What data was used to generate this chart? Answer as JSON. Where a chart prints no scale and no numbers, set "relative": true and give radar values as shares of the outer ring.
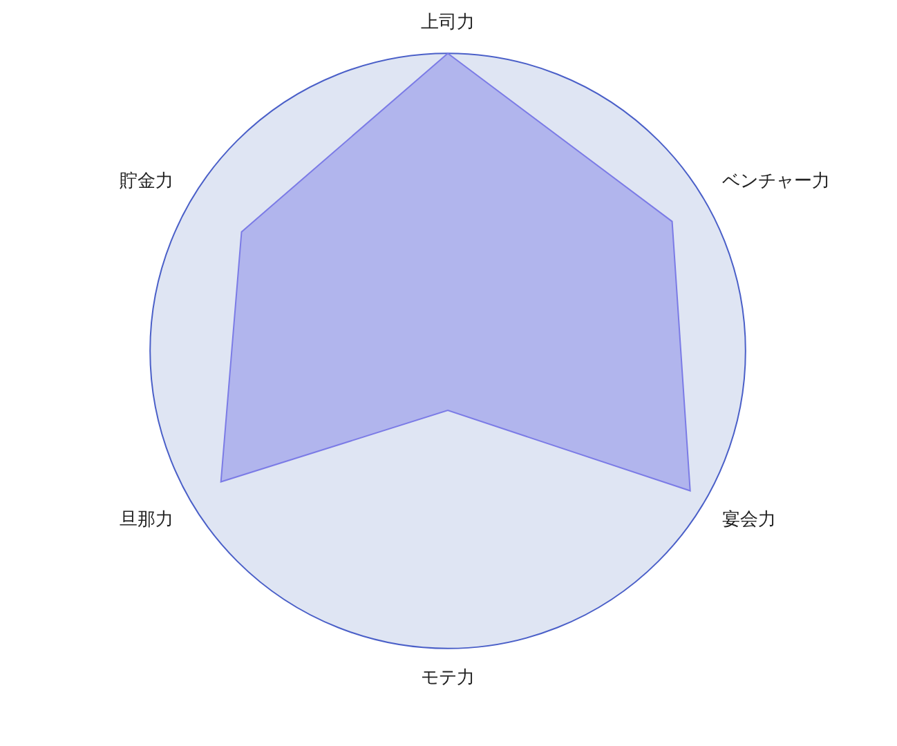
{
  "chart_data": {
    "type": "radar",
    "relative": true,
    "categories": [
      "上司力",
      "ベンチャー力",
      "宴会力",
      "モテ力",
      "旦那力",
      "貯金力"
    ],
    "series": [
      {
        "color": "#7b7be6",
        "values": [
          1,
          0.87,
          0.94,
          0.2,
          0.88,
          0.8
        ]
      }
    ],
    "legend": false,
    "grid": true,
    "marker": "none"
  }
}
